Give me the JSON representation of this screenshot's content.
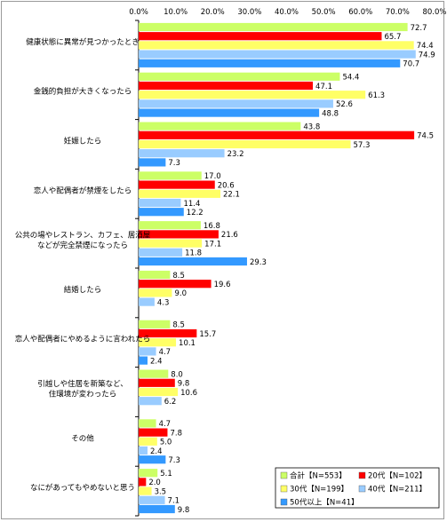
{
  "chart_data": {
    "type": "bar",
    "orientation": "horizontal",
    "xlim": [
      0,
      80
    ],
    "ticks": [
      "0.0%",
      "10.0%",
      "20.0%",
      "30.0%",
      "40.0%",
      "50.0%",
      "60.0%",
      "70.0%",
      "80.0%"
    ],
    "categories": [
      [
        "健康状態に異常が見つかったとき"
      ],
      [
        "金銭的負担が大きくなったら"
      ],
      [
        "妊娠したら"
      ],
      [
        "恋人や配偶者が禁煙をしたら"
      ],
      [
        "公共の場やレストラン、カフェ、居酒屋",
        "などが完全禁煙になったら"
      ],
      [
        "結婚したら"
      ],
      [
        "恋人や配偶者にやめるように言われたら"
      ],
      [
        "引越しや住居を新築など、",
        "住環境が変わったら"
      ],
      [
        "その他"
      ],
      [
        "なにがあってもやめないと思う"
      ]
    ],
    "series": [
      {
        "name": "合計【N=553】",
        "color": "#ccff66",
        "values": [
          72.7,
          54.4,
          43.8,
          17.0,
          16.8,
          8.5,
          8.5,
          8.0,
          4.7,
          5.1
        ],
        "labels": [
          "72.7",
          "54.4",
          "43.8",
          "17.0",
          "16.8",
          "8.5",
          "8.5",
          "8.0",
          "4.7",
          "5.1"
        ]
      },
      {
        "name": "20代【N=102】",
        "color": "#ff0000",
        "values": [
          65.7,
          47.1,
          74.5,
          20.6,
          21.6,
          19.6,
          15.7,
          9.8,
          7.8,
          2.0
        ],
        "labels": [
          "65.7",
          "47.1",
          "74.5",
          "20.6",
          "21.6",
          "19.6",
          "15.7",
          "9.8",
          "7.8",
          "2.0"
        ]
      },
      {
        "name": "30代【N=199】",
        "color": "#ffff66",
        "values": [
          74.4,
          61.3,
          57.3,
          22.1,
          17.1,
          9.0,
          10.1,
          10.6,
          5.0,
          3.5
        ],
        "labels": [
          "74.4",
          "61.3",
          "57.3",
          "22.1",
          "17.1",
          "9.0",
          "10.1",
          "10.6",
          "5.0",
          "3.5"
        ]
      },
      {
        "name": "40代【N=211】",
        "color": "#99ccff",
        "values": [
          74.9,
          52.6,
          23.2,
          11.4,
          11.8,
          4.3,
          4.7,
          6.2,
          2.4,
          7.1
        ],
        "labels": [
          "74.9",
          "52.6",
          "23.2",
          "11.4",
          "11.8",
          "4.3",
          "4.7",
          "6.2",
          "2.4",
          "7.1"
        ]
      },
      {
        "name": "50代以上【N=41】",
        "color": "#3399ff",
        "values": [
          70.7,
          48.8,
          7.3,
          12.2,
          29.3,
          0,
          2.4,
          0,
          7.3,
          9.8
        ],
        "labels": [
          "70.7",
          "48.8",
          "7.3",
          "12.2",
          "29.3",
          "",
          "2.4",
          "",
          "7.3",
          "9.8"
        ]
      }
    ],
    "legend_position": "bottom-right"
  }
}
